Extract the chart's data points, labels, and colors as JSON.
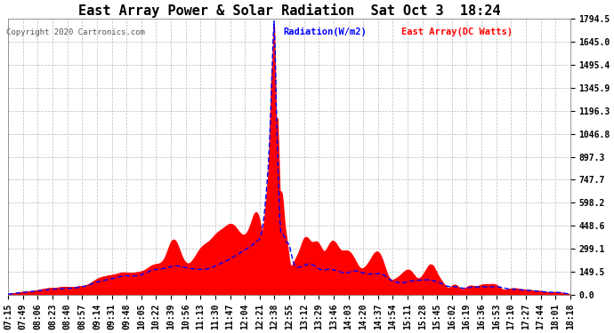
{
  "title": "East Array Power & Solar Radiation  Sat Oct 3  18:24",
  "copyright": "Copyright 2020 Cartronics.com",
  "legend_radiation": "Radiation(W/m2)",
  "legend_east": "East Array(DC Watts)",
  "ylabel_values": [
    1794.5,
    1645.0,
    1495.4,
    1345.9,
    1196.3,
    1046.8,
    897.3,
    747.7,
    598.2,
    448.6,
    299.1,
    149.5,
    0.0
  ],
  "ymax": 1794.5,
  "background_color": "#ffffff",
  "plot_bg_color": "#ffffff",
  "grid_color": "#bbbbbb",
  "radiation_color": "#0000ff",
  "east_array_color": "#ff0000",
  "fill_color": "#ff0000",
  "title_fontsize": 11,
  "tick_fontsize": 7,
  "x_ticks": [
    "07:15",
    "07:49",
    "08:06",
    "08:23",
    "08:40",
    "08:57",
    "09:14",
    "09:31",
    "09:48",
    "10:05",
    "10:22",
    "10:39",
    "10:56",
    "11:13",
    "11:30",
    "11:47",
    "12:04",
    "12:21",
    "12:38",
    "12:55",
    "13:12",
    "13:29",
    "13:46",
    "14:03",
    "14:20",
    "14:37",
    "14:54",
    "15:11",
    "15:28",
    "15:45",
    "16:02",
    "16:19",
    "16:36",
    "16:53",
    "17:10",
    "17:27",
    "17:44",
    "18:01",
    "18:18"
  ]
}
